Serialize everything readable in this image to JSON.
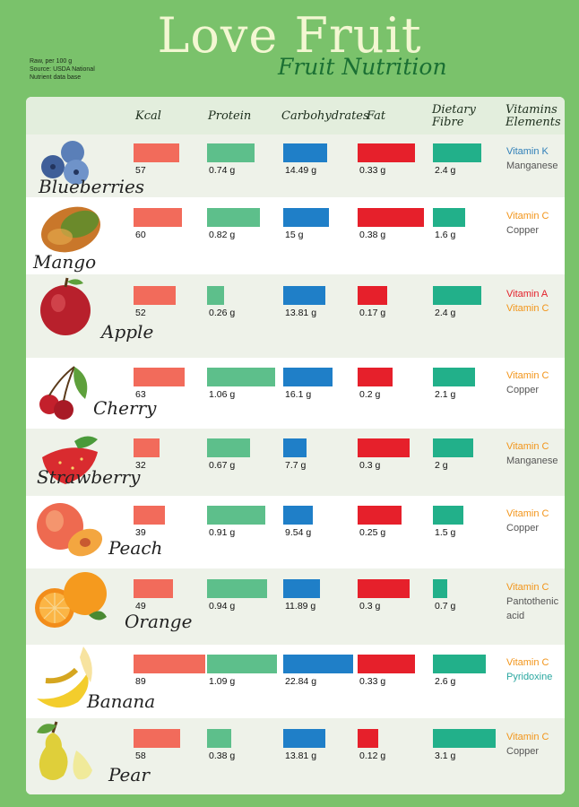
{
  "header": {
    "title": "Love Fruit",
    "subtitle": "Fruit Nutrition",
    "notes": [
      "Raw, per 100 g",
      "Source: USDA National",
      "Nutrient data base"
    ]
  },
  "columns": [
    "Kcal",
    "Protein",
    "Carbohydrates",
    "Fat",
    "Dietary Fibre",
    "Vitamins Elements"
  ],
  "colors": {
    "kcal": "#f26b5b",
    "protein": "#5dbf8b",
    "carbs": "#1f7fc8",
    "fat": "#e6202b",
    "fibre": "#22b08a",
    "vitamin_blue": "#2f7fb8",
    "vitamin_orange": "#f29418",
    "vitamin_red": "#e3202a",
    "vitamin_teal": "#2aa7a0",
    "vitamin_gray": "#555555"
  },
  "chart_data": {
    "type": "bar",
    "categories": [
      "Blueberries",
      "Mango",
      "Apple",
      "Cherry",
      "Strawberry",
      "Peach",
      "Orange",
      "Banana",
      "Pear"
    ],
    "series": [
      {
        "name": "Kcal",
        "values": [
          57,
          60,
          52,
          63,
          32,
          39,
          49,
          89,
          58
        ],
        "labels": [
          "57",
          "60",
          "52",
          "63",
          "32",
          "39",
          "49",
          "89",
          "58"
        ]
      },
      {
        "name": "Protein",
        "values": [
          0.74,
          0.82,
          0.26,
          1.06,
          0.67,
          0.91,
          0.94,
          1.09,
          0.38
        ],
        "labels": [
          "0.74 g",
          "0.82 g",
          "0.26 g",
          "1.06 g",
          "0.67 g",
          "0.91 g",
          "0.94 g",
          "1.09 g",
          "0.38 g"
        ]
      },
      {
        "name": "Carbohydrates",
        "values": [
          14.49,
          15,
          13.81,
          16.1,
          7.7,
          9.54,
          11.89,
          22.84,
          13.81
        ],
        "labels": [
          "14.49 g",
          "15 g",
          "13.81 g",
          "16.1 g",
          "7.7 g",
          "9.54 g",
          "11.89 g",
          "22.84 g",
          "13.81 g"
        ]
      },
      {
        "name": "Fat",
        "values": [
          0.33,
          0.38,
          0.17,
          0.2,
          0.3,
          0.25,
          0.3,
          0.33,
          0.12
        ],
        "labels": [
          "0.33 g",
          "0.38 g",
          "0.17 g",
          "0.2 g",
          "0.3 g",
          "0.25 g",
          "0.3 g",
          "0.33 g",
          "0.12 g"
        ]
      },
      {
        "name": "Dietary Fibre",
        "values": [
          2.4,
          1.6,
          2.4,
          2.1,
          2,
          1.5,
          0.7,
          2.6,
          3.1
        ],
        "labels": [
          "2.4 g",
          "1.6 g",
          "2.4 g",
          "2.1 g",
          "2 g",
          "1.5 g",
          "0.7 g",
          "2.6 g",
          "3.1 g"
        ]
      }
    ],
    "vitamins": [
      [
        {
          "text": "Vitamin K",
          "color": "blue"
        },
        {
          "text": "Manganese",
          "color": "gray"
        }
      ],
      [
        {
          "text": "Vitamin C",
          "color": "orange"
        },
        {
          "text": "Copper",
          "color": "gray"
        }
      ],
      [
        {
          "text": "Vitamin A",
          "color": "red"
        },
        {
          "text": "Vitamin C",
          "color": "orange"
        }
      ],
      [
        {
          "text": "Vitamin C",
          "color": "orange"
        },
        {
          "text": "Copper",
          "color": "gray"
        }
      ],
      [
        {
          "text": "Vitamin C",
          "color": "orange"
        },
        {
          "text": "Manganese",
          "color": "gray"
        }
      ],
      [
        {
          "text": "Vitamin C",
          "color": "orange"
        },
        {
          "text": "Copper",
          "color": "gray"
        }
      ],
      [
        {
          "text": "Vitamin C",
          "color": "orange"
        },
        {
          "text": "Pantothenic acid",
          "color": "gray"
        }
      ],
      [
        {
          "text": "Vitamin C",
          "color": "orange"
        },
        {
          "text": "Pyridoxine",
          "color": "teal"
        }
      ],
      [
        {
          "text": "Vitamin C",
          "color": "orange"
        },
        {
          "text": "Copper",
          "color": "gray"
        }
      ]
    ],
    "icons": [
      "blueberries-icon",
      "mango-icon",
      "apple-icon",
      "cherry-icon",
      "strawberry-icon",
      "peach-icon",
      "orange-icon",
      "banana-icon",
      "pear-icon"
    ]
  }
}
